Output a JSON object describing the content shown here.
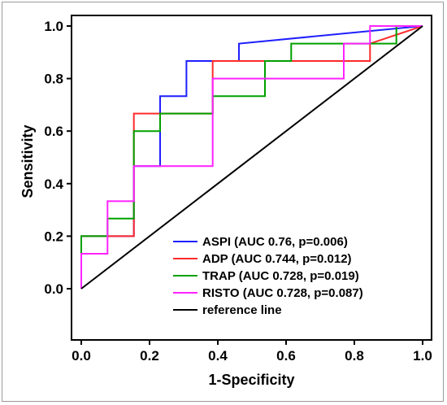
{
  "chart_data": {
    "type": "line",
    "title": "",
    "xlabel": "1-Specificity",
    "ylabel": "Sensitivity",
    "xlim": [
      0,
      1
    ],
    "ylim": [
      -0.2,
      1.0
    ],
    "x_ticks": [
      "0.0",
      "0.2",
      "0.4",
      "0.6",
      "0.8",
      "1.0"
    ],
    "y_ticks": [
      "0.0",
      "0.2",
      "0.4",
      "0.6",
      "0.8",
      "1.0"
    ],
    "grid": false,
    "legend_position": "bottom-right",
    "series": [
      {
        "name": "ASPI (AUC 0.76, p=0.006)",
        "color": "#1f1fff",
        "x": [
          0,
          0,
          0.154,
          0.154,
          0.231,
          0.231,
          0.308,
          0.308,
          0.462,
          0.462,
          1
        ],
        "y": [
          0,
          0.2,
          0.2,
          0.467,
          0.467,
          0.733,
          0.733,
          0.867,
          0.867,
          0.933,
          1
        ]
      },
      {
        "name": "ADP (AUC 0.744, p=0.012)",
        "color": "#ff2a2a",
        "x": [
          0,
          0,
          0.154,
          0.154,
          0.385,
          0.385,
          0.846,
          0.846,
          1
        ],
        "y": [
          0,
          0.2,
          0.2,
          0.667,
          0.667,
          0.867,
          0.867,
          0.933,
          1
        ]
      },
      {
        "name": "TRAP (AUC 0.728, p=0.019)",
        "color": "#00a000",
        "x": [
          0,
          0,
          0.077,
          0.077,
          0.154,
          0.154,
          0.231,
          0.231,
          0.385,
          0.385,
          0.462,
          0.462,
          0.538,
          0.538,
          0.615,
          0.615,
          0.923,
          0.923,
          1
        ],
        "y": [
          0,
          0.2,
          0.2,
          0.267,
          0.267,
          0.6,
          0.6,
          0.667,
          0.667,
          0.733,
          0.733,
          0.733,
          0.733,
          0.867,
          0.867,
          0.933,
          0.933,
          1,
          1
        ]
      },
      {
        "name": "RISTO (AUC 0.728, p=0.087)",
        "color": "#ff22ff",
        "x": [
          0,
          0,
          0.077,
          0.077,
          0.154,
          0.154,
          0.385,
          0.385,
          0.769,
          0.769,
          0.846,
          0.846,
          1
        ],
        "y": [
          0,
          0.133,
          0.133,
          0.333,
          0.333,
          0.467,
          0.467,
          0.8,
          0.8,
          0.933,
          0.933,
          1,
          1
        ]
      },
      {
        "name": "reference line",
        "color": "#000000",
        "x": [
          0,
          1
        ],
        "y": [
          0,
          1
        ]
      }
    ]
  }
}
